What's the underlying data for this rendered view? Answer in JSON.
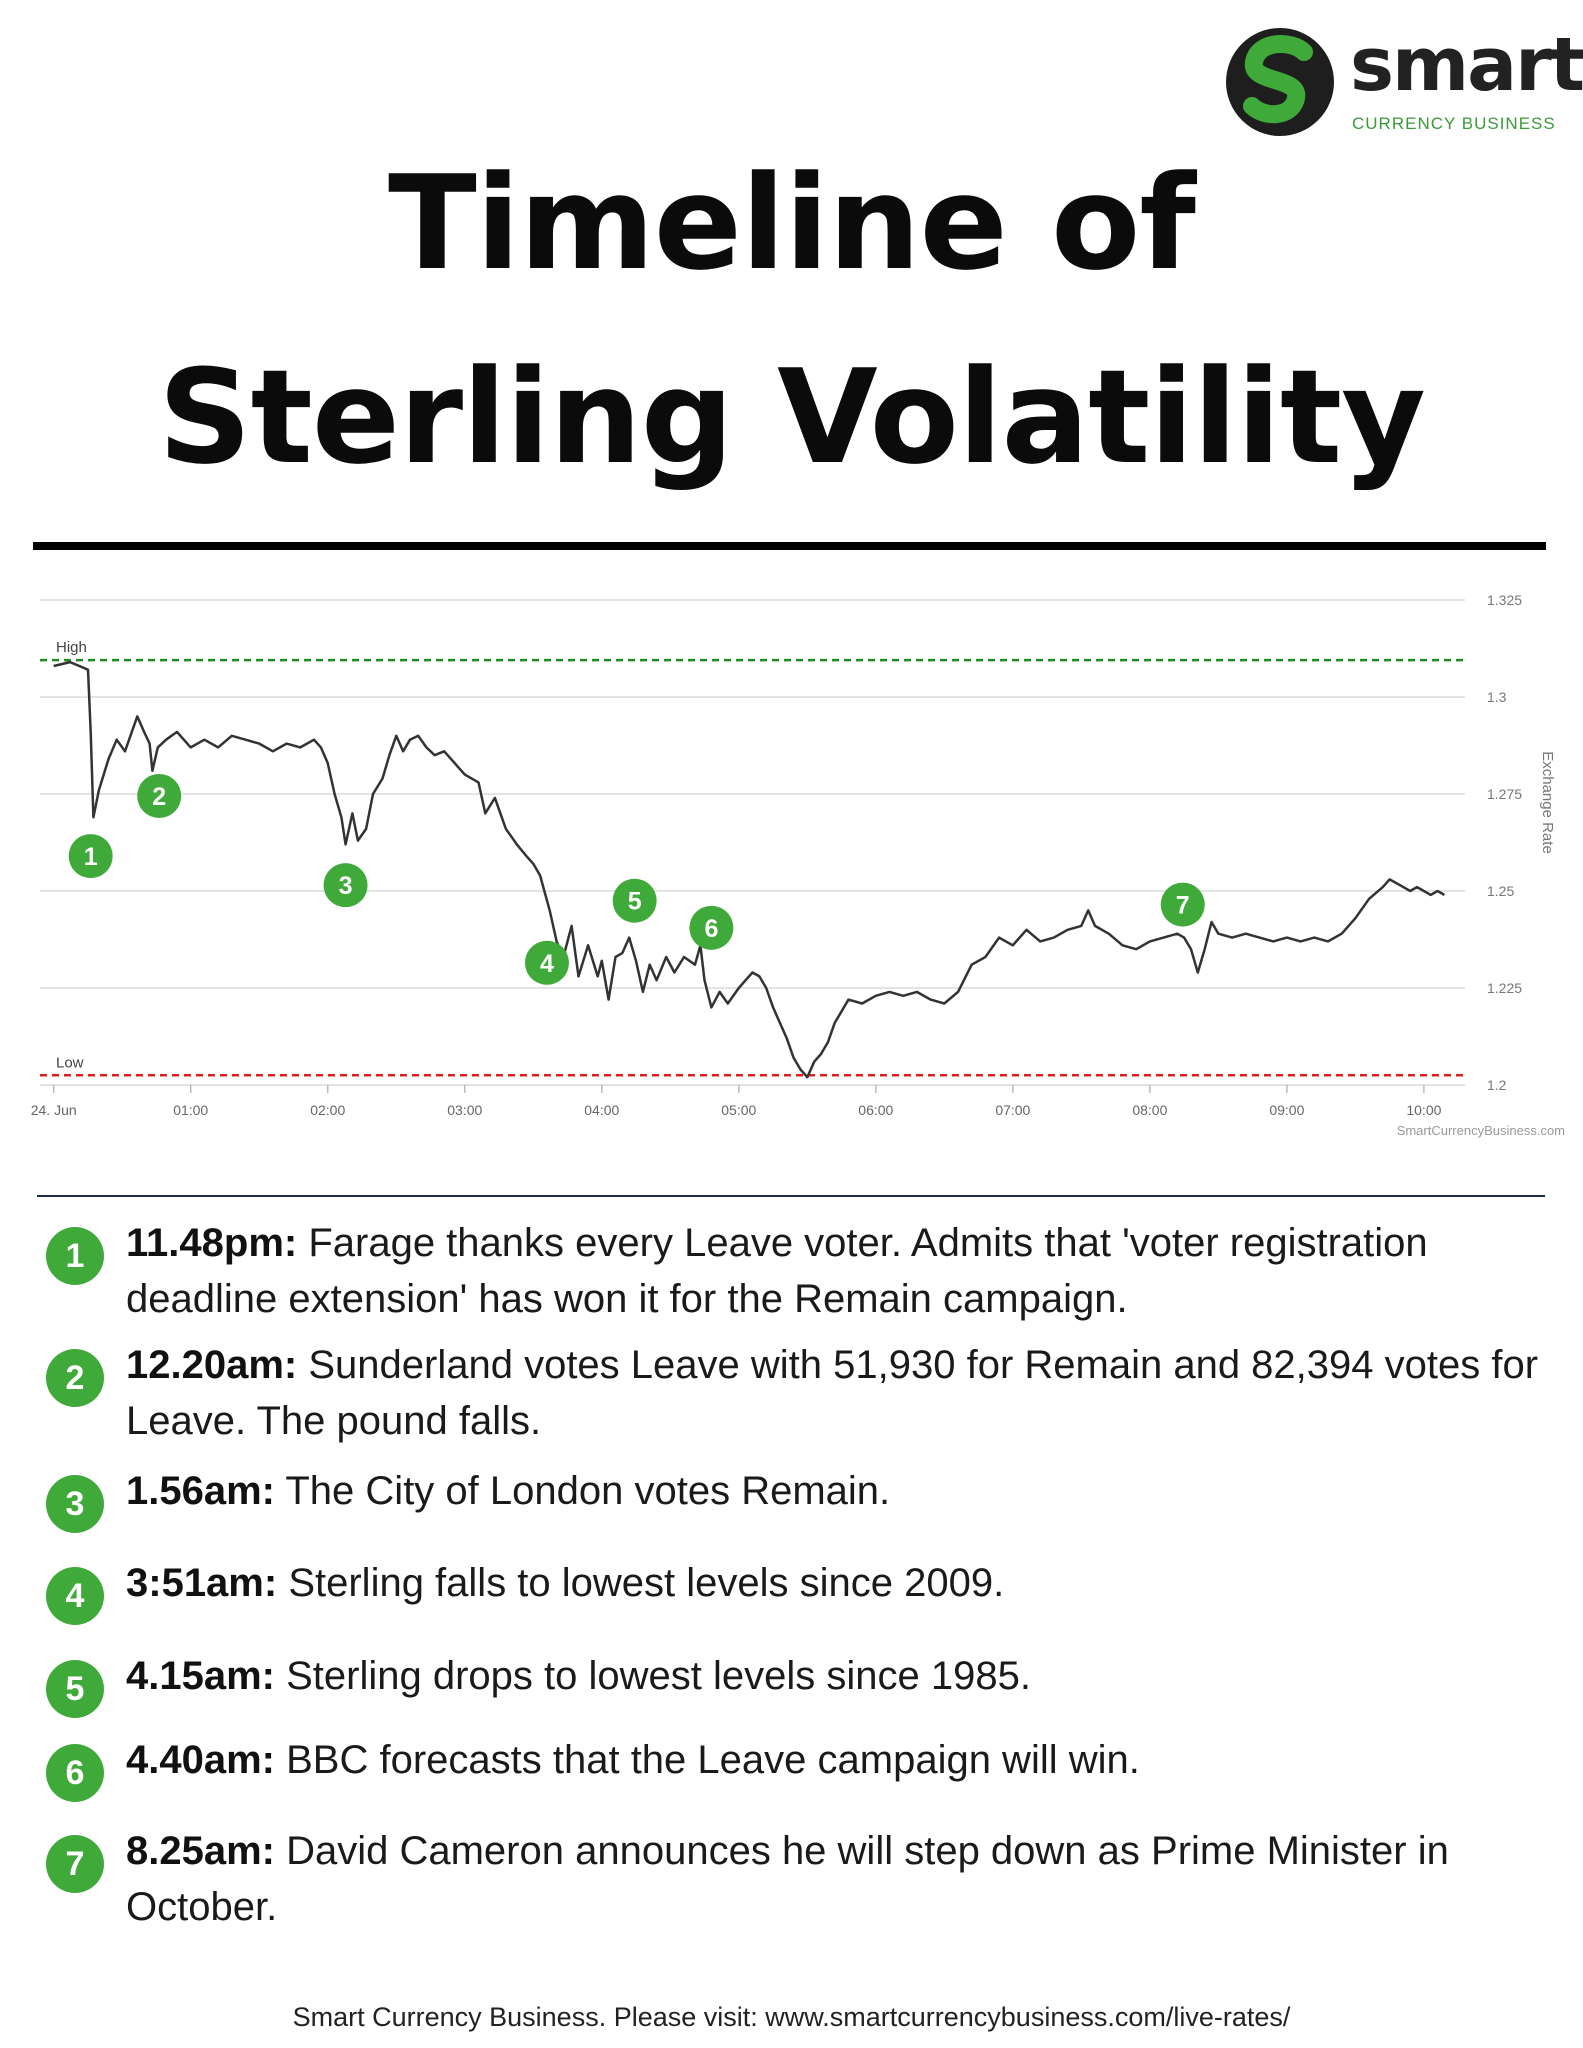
{
  "logo": {
    "word": "smart",
    "sub": "CURRENCY BUSINESS",
    "icon": "s-logo-icon"
  },
  "title": {
    "line1": "Timeline of",
    "line2": "Sterling Volatility"
  },
  "chart_data": {
    "type": "line",
    "ylabel": "Exchange Rate",
    "ylim": [
      1.2,
      1.325
    ],
    "yticks": [
      "1.325",
      "1.3",
      "1.275",
      "1.25",
      "1.225",
      "1.2"
    ],
    "xlim": [
      -0.1,
      10.3
    ],
    "xticks": [
      {
        "label": "24. Jun",
        "x": 0
      },
      {
        "label": "01:00",
        "x": 1
      },
      {
        "label": "02:00",
        "x": 2
      },
      {
        "label": "03:00",
        "x": 3
      },
      {
        "label": "04:00",
        "x": 4
      },
      {
        "label": "05:00",
        "x": 5
      },
      {
        "label": "06:00",
        "x": 6
      },
      {
        "label": "07:00",
        "x": 7
      },
      {
        "label": "08:00",
        "x": 8
      },
      {
        "label": "09:00",
        "x": 9
      },
      {
        "label": "10:00",
        "x": 10
      }
    ],
    "high": {
      "label": "High",
      "value": 1.3095,
      "color": "#1e8c1e"
    },
    "low": {
      "label": "Low",
      "value": 1.2025,
      "color": "#e0201c"
    },
    "watermark": "SmartCurrencyBusiness.com",
    "line_color": "#333333",
    "series": [
      {
        "points": [
          [
            0,
            1.308
          ],
          [
            0.12,
            1.309
          ],
          [
            0.22,
            1.3075
          ],
          [
            0.25,
            1.307
          ],
          [
            0.27,
            1.291
          ],
          [
            0.29,
            1.269
          ],
          [
            0.33,
            1.276
          ],
          [
            0.4,
            1.284
          ],
          [
            0.46,
            1.289
          ],
          [
            0.52,
            1.286
          ],
          [
            0.57,
            1.291
          ],
          [
            0.61,
            1.295
          ],
          [
            0.66,
            1.291
          ],
          [
            0.7,
            1.288
          ],
          [
            0.72,
            1.281
          ],
          [
            0.76,
            1.287
          ],
          [
            0.82,
            1.289
          ],
          [
            0.9,
            1.291
          ],
          [
            1.0,
            1.287
          ],
          [
            1.1,
            1.289
          ],
          [
            1.2,
            1.287
          ],
          [
            1.3,
            1.29
          ],
          [
            1.4,
            1.289
          ],
          [
            1.5,
            1.288
          ],
          [
            1.6,
            1.286
          ],
          [
            1.7,
            1.288
          ],
          [
            1.8,
            1.287
          ],
          [
            1.9,
            1.289
          ],
          [
            1.95,
            1.287
          ],
          [
            2.0,
            1.283
          ],
          [
            2.05,
            1.275
          ],
          [
            2.1,
            1.269
          ],
          [
            2.13,
            1.262
          ],
          [
            2.18,
            1.27
          ],
          [
            2.22,
            1.263
          ],
          [
            2.28,
            1.266
          ],
          [
            2.33,
            1.275
          ],
          [
            2.4,
            1.279
          ],
          [
            2.45,
            1.285
          ],
          [
            2.5,
            1.29
          ],
          [
            2.55,
            1.286
          ],
          [
            2.6,
            1.289
          ],
          [
            2.66,
            1.29
          ],
          [
            2.72,
            1.287
          ],
          [
            2.78,
            1.285
          ],
          [
            2.85,
            1.286
          ],
          [
            2.9,
            1.284
          ],
          [
            2.95,
            1.282
          ],
          [
            3.0,
            1.28
          ],
          [
            3.1,
            1.278
          ],
          [
            3.15,
            1.27
          ],
          [
            3.22,
            1.274
          ],
          [
            3.3,
            1.266
          ],
          [
            3.38,
            1.262
          ],
          [
            3.45,
            1.259
          ],
          [
            3.5,
            1.257
          ],
          [
            3.55,
            1.254
          ],
          [
            3.62,
            1.245
          ],
          [
            3.67,
            1.237
          ],
          [
            3.72,
            1.233
          ],
          [
            3.78,
            1.241
          ],
          [
            3.83,
            1.228
          ],
          [
            3.9,
            1.236
          ],
          [
            3.97,
            1.228
          ],
          [
            4.0,
            1.232
          ],
          [
            4.05,
            1.222
          ],
          [
            4.1,
            1.233
          ],
          [
            4.15,
            1.234
          ],
          [
            4.2,
            1.238
          ],
          [
            4.25,
            1.232
          ],
          [
            4.3,
            1.224
          ],
          [
            4.35,
            1.231
          ],
          [
            4.4,
            1.227
          ],
          [
            4.47,
            1.233
          ],
          [
            4.53,
            1.229
          ],
          [
            4.6,
            1.233
          ],
          [
            4.68,
            1.231
          ],
          [
            4.72,
            1.236
          ],
          [
            4.75,
            1.227
          ],
          [
            4.8,
            1.22
          ],
          [
            4.86,
            1.224
          ],
          [
            4.92,
            1.221
          ],
          [
            5.0,
            1.225
          ],
          [
            5.05,
            1.227
          ],
          [
            5.1,
            1.229
          ],
          [
            5.15,
            1.228
          ],
          [
            5.2,
            1.225
          ],
          [
            5.25,
            1.22
          ],
          [
            5.3,
            1.216
          ],
          [
            5.35,
            1.212
          ],
          [
            5.4,
            1.207
          ],
          [
            5.45,
            1.204
          ],
          [
            5.5,
            1.202
          ],
          [
            5.55,
            1.206
          ],
          [
            5.6,
            1.208
          ],
          [
            5.65,
            1.211
          ],
          [
            5.7,
            1.216
          ],
          [
            5.75,
            1.219
          ],
          [
            5.8,
            1.222
          ],
          [
            5.9,
            1.221
          ],
          [
            6.0,
            1.223
          ],
          [
            6.1,
            1.224
          ],
          [
            6.2,
            1.223
          ],
          [
            6.3,
            1.224
          ],
          [
            6.4,
            1.222
          ],
          [
            6.5,
            1.221
          ],
          [
            6.6,
            1.224
          ],
          [
            6.7,
            1.231
          ],
          [
            6.8,
            1.233
          ],
          [
            6.9,
            1.238
          ],
          [
            7.0,
            1.236
          ],
          [
            7.1,
            1.24
          ],
          [
            7.2,
            1.237
          ],
          [
            7.3,
            1.238
          ],
          [
            7.4,
            1.24
          ],
          [
            7.5,
            1.241
          ],
          [
            7.55,
            1.245
          ],
          [
            7.6,
            1.241
          ],
          [
            7.7,
            1.239
          ],
          [
            7.8,
            1.236
          ],
          [
            7.9,
            1.235
          ],
          [
            8.0,
            1.237
          ],
          [
            8.1,
            1.238
          ],
          [
            8.2,
            1.239
          ],
          [
            8.25,
            1.238
          ],
          [
            8.3,
            1.235
          ],
          [
            8.35,
            1.229
          ],
          [
            8.4,
            1.235
          ],
          [
            8.45,
            1.242
          ],
          [
            8.5,
            1.239
          ],
          [
            8.6,
            1.238
          ],
          [
            8.7,
            1.239
          ],
          [
            8.8,
            1.238
          ],
          [
            8.9,
            1.237
          ],
          [
            9.0,
            1.238
          ],
          [
            9.1,
            1.237
          ],
          [
            9.2,
            1.238
          ],
          [
            9.3,
            1.237
          ],
          [
            9.4,
            1.239
          ],
          [
            9.5,
            1.243
          ],
          [
            9.6,
            1.248
          ],
          [
            9.7,
            1.251
          ],
          [
            9.75,
            1.253
          ],
          [
            9.8,
            1.252
          ],
          [
            9.85,
            1.251
          ],
          [
            9.9,
            1.25
          ],
          [
            9.95,
            1.251
          ],
          [
            10.0,
            1.25
          ],
          [
            10.05,
            1.249
          ],
          [
            10.1,
            1.25
          ],
          [
            10.15,
            1.249
          ]
        ]
      }
    ],
    "markers": [
      {
        "label": "1",
        "x": 0.27,
        "y": 1.259
      },
      {
        "label": "2",
        "x": 0.77,
        "y": 1.2745
      },
      {
        "label": "3",
        "x": 2.13,
        "y": 1.2515
      },
      {
        "label": "4",
        "x": 3.6,
        "y": 1.2315
      },
      {
        "label": "5",
        "x": 4.24,
        "y": 1.2475
      },
      {
        "label": "6",
        "x": 4.8,
        "y": 1.2405
      },
      {
        "label": "7",
        "x": 8.24,
        "y": 1.2465
      }
    ]
  },
  "events": [
    {
      "num": "1",
      "time": "11.48pm:",
      "text": " Farage thanks every Leave voter. Admits that 'voter registration deadline extension' has won it for the Remain campaign."
    },
    {
      "num": "2",
      "time": "12.20am:",
      "text": " Sunderland votes Leave with 51,930 for Remain and 82,394 votes for Leave. The pound falls."
    },
    {
      "num": "3",
      "time": "1.56am:",
      "text": " The City of London votes Remain."
    },
    {
      "num": "4",
      "time": "3:51am:",
      "text": " Sterling falls to lowest levels since 2009."
    },
    {
      "num": "5",
      "time": "4.15am:",
      "text": " Sterling drops to lowest levels since 1985."
    },
    {
      "num": "6",
      "time": "4.40am:",
      "text": " BBC forecasts that the Leave campaign will win."
    },
    {
      "num": "7",
      "time": "8.25am:",
      "text": " David Cameron announces he will step down as Prime Minister in October."
    }
  ],
  "footer": "Smart Currency Business. Please visit: www.smartcurrencybusiness.com/live-rates/"
}
